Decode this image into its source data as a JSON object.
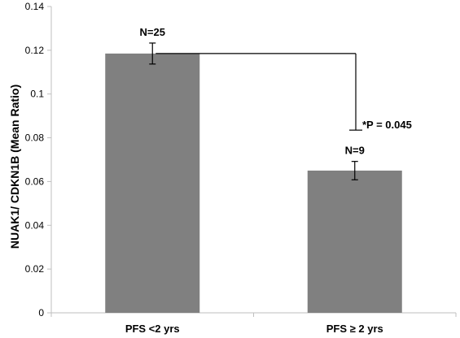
{
  "chart_data": {
    "type": "bar",
    "categories": [
      "PFS <2 yrs",
      "PFS ≥ 2 yrs"
    ],
    "values": [
      0.1185,
      0.065
    ],
    "error": [
      0.0048,
      0.0042
    ],
    "bar_labels": [
      "N=25",
      "N=9"
    ],
    "ylabel": "NUAK1/ CDKN1B  (Mean Ratio)",
    "ylim": [
      0,
      0.14
    ],
    "yticks": [
      0,
      0.02,
      0.04,
      0.06,
      0.08,
      0.1,
      0.12,
      0.14
    ],
    "ytick_labels": [
      "0",
      "0.02",
      "0.04",
      "0.06",
      "0.08",
      "0.1",
      "0.12",
      "0.14"
    ],
    "significance": {
      "label": "*P = 0.045",
      "bracket_top": 0.1185,
      "bracket_bottom": 0.0835
    },
    "grid": false,
    "legend": "none",
    "colors": {
      "bar": "#808080",
      "axis": "#bfbfbf",
      "text": "#000000"
    }
  }
}
